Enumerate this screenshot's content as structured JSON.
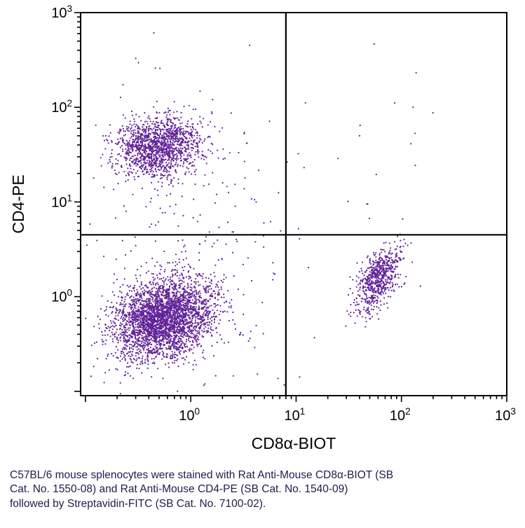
{
  "caption": {
    "lines": [
      "C57BL/6 mouse splenocytes were stained with Rat Anti-Mouse CD8α-BIOT (SB",
      "Cat. No. 1550-08) and Rat Anti-Mouse CD4-PE (SB Cat. No. 1540-09)",
      "followed by Streptavidin-FITC (SB Cat. No. 7100-02)."
    ]
  },
  "colors": {
    "dots": "#55108f",
    "axis": "#000000",
    "caption": "#1d1d4f"
  },
  "chart_data": {
    "type": "scatter",
    "title": "",
    "xlabel": "CD8α-BIOT",
    "ylabel": "CD4-PE",
    "x_scale": "log",
    "y_scale": "log",
    "xlim": [
      0.09,
      1000
    ],
    "ylim": [
      0.09,
      1000
    ],
    "x_major_ticks": [
      1,
      10,
      100,
      1000
    ],
    "y_major_ticks": [
      1,
      10,
      100,
      1000
    ],
    "grid": false,
    "legend": "none",
    "quadrant_gate": {
      "x": 8,
      "y": 4.5
    },
    "populations": [
      {
        "name": "cd4-positive-upper-left",
        "n": 1500,
        "center": [
          0.5,
          38
        ],
        "log_sd": [
          0.21,
          0.155
        ],
        "corr": 0.15
      },
      {
        "name": "double-negative-lower-left",
        "n": 3300,
        "center": [
          0.55,
          0.6
        ],
        "log_sd": [
          0.235,
          0.21
        ],
        "corr": 0.25
      },
      {
        "name": "cd8-positive-lower-right",
        "n": 700,
        "center": [
          60,
          1.55
        ],
        "log_sd": [
          0.105,
          0.17
        ],
        "corr": 0.55
      },
      {
        "name": "sparse-background",
        "n": 230,
        "center": [
          0.9,
          2.2
        ],
        "log_sd": [
          0.55,
          0.85
        ],
        "corr": 0.0
      },
      {
        "name": "upper-right-sparse",
        "n": 22,
        "center": [
          45,
          25
        ],
        "log_sd": [
          0.35,
          0.5
        ],
        "corr": 0.0
      },
      {
        "name": "rare-high-events",
        "n": 7,
        "center": [
          0.3,
          280
        ],
        "log_sd": [
          0.3,
          0.3
        ],
        "corr": 0.0
      }
    ]
  }
}
